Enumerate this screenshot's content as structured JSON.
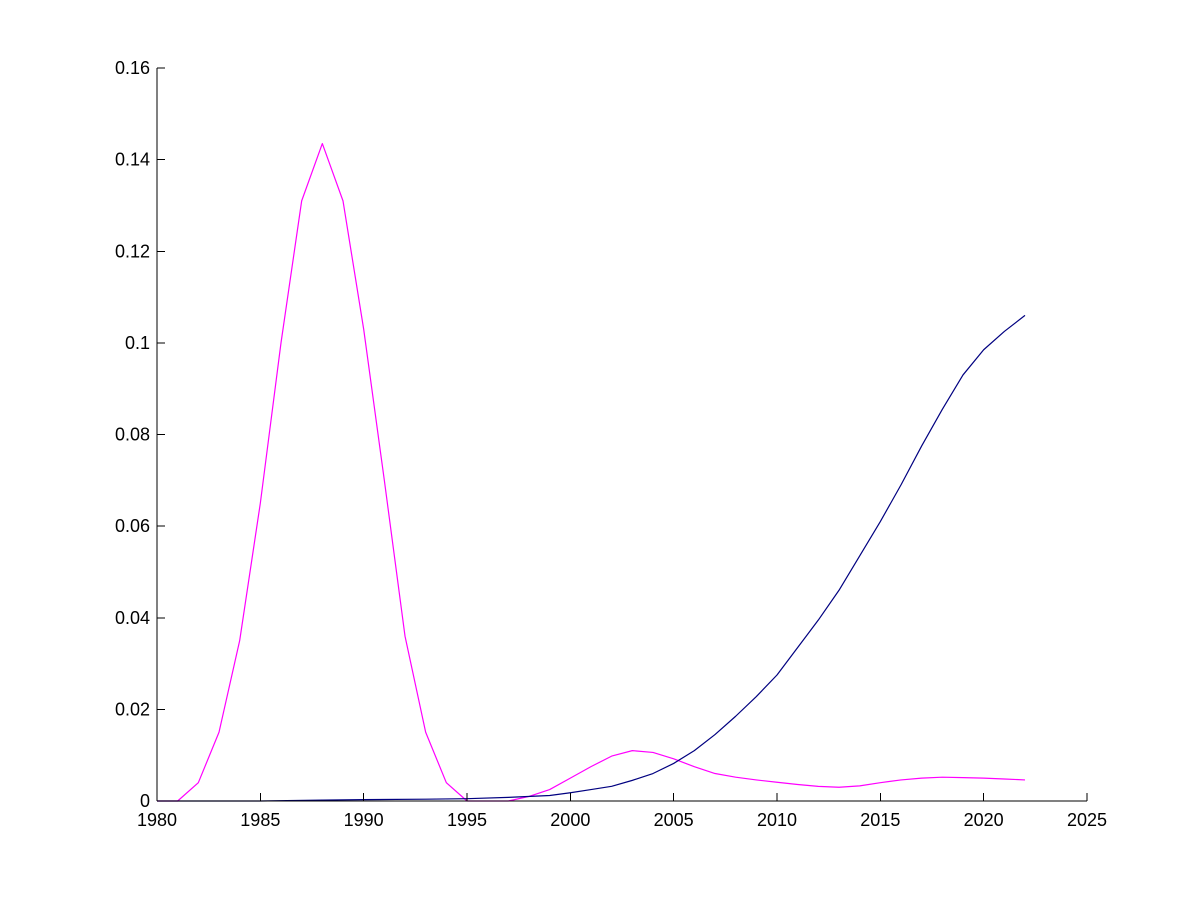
{
  "chart_data": {
    "type": "line",
    "title": "",
    "xlabel": "",
    "ylabel": "",
    "xlim": [
      1980,
      2025
    ],
    "ylim": [
      0,
      0.16
    ],
    "grid": false,
    "legend": "none",
    "x_ticks": [
      1980,
      1985,
      1990,
      1995,
      2000,
      2005,
      2010,
      2015,
      2020,
      2025
    ],
    "x_tick_labels": [
      "1980",
      "1985",
      "1990",
      "1995",
      "2000",
      "2005",
      "2010",
      "2015",
      "2020",
      "2025"
    ],
    "y_ticks": [
      0,
      0.02,
      0.04,
      0.06,
      0.08,
      0.1,
      0.12,
      0.14,
      0.16
    ],
    "y_tick_labels": [
      "0",
      "0.02",
      "0.04",
      "0.06",
      "0.08",
      "0.1",
      "0.12",
      "0.14",
      "0.16"
    ],
    "series": [
      {
        "color": "#ff00ff",
        "x": [
          1980,
          1981,
          1982,
          1983,
          1984,
          1985,
          1986,
          1987,
          1988,
          1989,
          1990,
          1991,
          1992,
          1993,
          1994,
          1995,
          1996,
          1997,
          1998,
          1999,
          2000,
          2001,
          2002,
          2003,
          2004,
          2005,
          2006,
          2007,
          2008,
          2009,
          2010,
          2011,
          2012,
          2013,
          2014,
          2015,
          2016,
          2017,
          2018,
          2019,
          2020,
          2021,
          2022
        ],
        "y": [
          0,
          0,
          0.004,
          0.015,
          0.035,
          0.065,
          0.1,
          0.131,
          0.1435,
          0.131,
          0.103,
          0.07,
          0.036,
          0.015,
          0.004,
          0,
          0,
          0,
          0.001,
          0.0025,
          0.005,
          0.0075,
          0.0098,
          0.011,
          0.0106,
          0.0092,
          0.0075,
          0.006,
          0.0052,
          0.0046,
          0.0041,
          0.0036,
          0.0032,
          0.003,
          0.0033,
          0.004,
          0.0046,
          0.005,
          0.0052,
          0.0051,
          0.005,
          0.0048,
          0.0046
        ]
      },
      {
        "color": "#000080",
        "x": [
          1980,
          1985,
          1988,
          1990,
          1993,
          1995,
          1997,
          1999,
          2000,
          2001,
          2002,
          2003,
          2004,
          2005,
          2006,
          2007,
          2008,
          2009,
          2010,
          2011,
          2012,
          2013,
          2014,
          2015,
          2016,
          2017,
          2018,
          2019,
          2020,
          2021,
          2022
        ],
        "y": [
          0,
          0,
          0.0002,
          0.0003,
          0.0004,
          0.0005,
          0.0008,
          0.0012,
          0.0018,
          0.0025,
          0.0032,
          0.0045,
          0.006,
          0.0082,
          0.011,
          0.0145,
          0.0185,
          0.0228,
          0.0275,
          0.0335,
          0.0395,
          0.046,
          0.0535,
          0.061,
          0.069,
          0.0775,
          0.0855,
          0.093,
          0.0985,
          0.1025,
          0.106
        ]
      }
    ]
  }
}
